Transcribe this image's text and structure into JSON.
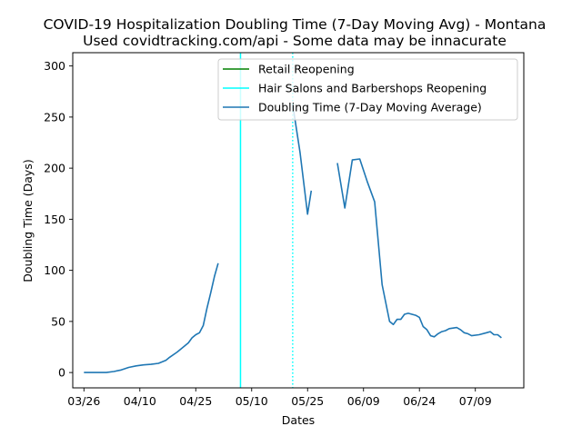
{
  "chart_data": {
    "type": "line",
    "title": "COVID-19 Hospitalization Doubling Time (7-Day Moving Avg) - Montana",
    "subtitle": "Used covidtracking.com/api - Some data may be innacurate",
    "xlabel": "Dates",
    "ylabel": "Doubling Time (Days)",
    "x_axis": {
      "type": "date",
      "range": [
        "2020-03-23",
        "2020-07-22"
      ],
      "ticks": [
        {
          "date": "2020-03-26",
          "label": "03/26"
        },
        {
          "date": "2020-04-10",
          "label": "04/10"
        },
        {
          "date": "2020-04-25",
          "label": "04/25"
        },
        {
          "date": "2020-05-10",
          "label": "05/10"
        },
        {
          "date": "2020-05-25",
          "label": "05/25"
        },
        {
          "date": "2020-06-09",
          "label": "06/09"
        },
        {
          "date": "2020-06-24",
          "label": "06/24"
        },
        {
          "date": "2020-07-09",
          "label": "07/09"
        }
      ]
    },
    "y_axis": {
      "range": [
        -15,
        313
      ],
      "ticks": [
        0,
        50,
        100,
        150,
        200,
        250,
        300
      ]
    },
    "grid": false,
    "legend": {
      "placement": "top-right",
      "entries": [
        {
          "label": "Retail Reopening",
          "color": "#008000",
          "style": "solid"
        },
        {
          "label": "Hair Salons and Barbershops Reopening",
          "color": "#00ffff",
          "style": "solid"
        },
        {
          "label": "Doubling Time (7-Day Moving Average)",
          "color": "#1f77b4",
          "style": "solid"
        }
      ]
    },
    "vlines": [
      {
        "date": "2020-05-07",
        "color": "#00ffff",
        "style": "solid"
      },
      {
        "date": "2020-05-21",
        "color": "#00ffff",
        "style": "dotted"
      }
    ],
    "series": [
      {
        "name": "Doubling Time (7-Day Moving Average)",
        "color": "#1f77b4",
        "segments": [
          [
            [
              "2020-03-26",
              0
            ],
            [
              "2020-03-28",
              0
            ],
            [
              "2020-03-30",
              0
            ],
            [
              "2020-04-01",
              0
            ],
            [
              "2020-04-03",
              1
            ],
            [
              "2020-04-05",
              2.5
            ],
            [
              "2020-04-07",
              5
            ],
            [
              "2020-04-09",
              6.5
            ],
            [
              "2020-04-11",
              7.5
            ],
            [
              "2020-04-13",
              8
            ],
            [
              "2020-04-15",
              9
            ],
            [
              "2020-04-17",
              12
            ],
            [
              "2020-04-18",
              15
            ],
            [
              "2020-04-20",
              20
            ],
            [
              "2020-04-22",
              26
            ],
            [
              "2020-04-23",
              29
            ],
            [
              "2020-04-24",
              34
            ],
            [
              "2020-04-25",
              37
            ],
            [
              "2020-04-26",
              39
            ],
            [
              "2020-04-27",
              46
            ],
            [
              "2020-04-28",
              63
            ],
            [
              "2020-04-29",
              78
            ],
            [
              "2020-04-30",
              94
            ],
            [
              "2020-05-01",
              107
            ]
          ],
          [
            [
              "2020-05-21",
              262
            ],
            [
              "2020-05-23",
              215
            ],
            [
              "2020-05-24",
              185
            ],
            [
              "2020-05-25",
              155
            ],
            [
              "2020-05-26",
              178
            ]
          ],
          [
            [
              "2020-06-02",
              205
            ],
            [
              "2020-06-04",
              161
            ],
            [
              "2020-06-06",
              208
            ],
            [
              "2020-06-08",
              209
            ],
            [
              "2020-06-10",
              187
            ],
            [
              "2020-06-12",
              167
            ],
            [
              "2020-06-14",
              86
            ],
            [
              "2020-06-16",
              50
            ],
            [
              "2020-06-17",
              47
            ],
            [
              "2020-06-18",
              52
            ],
            [
              "2020-06-19",
              52
            ],
            [
              "2020-06-20",
              57
            ],
            [
              "2020-06-21",
              58
            ],
            [
              "2020-06-22",
              57
            ],
            [
              "2020-06-23",
              56
            ],
            [
              "2020-06-24",
              54
            ],
            [
              "2020-06-25",
              45
            ],
            [
              "2020-06-26",
              42
            ],
            [
              "2020-06-27",
              36
            ],
            [
              "2020-06-28",
              35
            ],
            [
              "2020-06-29",
              38
            ],
            [
              "2020-06-30",
              40
            ],
            [
              "2020-07-01",
              41
            ],
            [
              "2020-07-02",
              43
            ],
            [
              "2020-07-04",
              44
            ],
            [
              "2020-07-05",
              42
            ],
            [
              "2020-07-06",
              39
            ],
            [
              "2020-07-07",
              38
            ],
            [
              "2020-07-08",
              36
            ],
            [
              "2020-07-10",
              37
            ],
            [
              "2020-07-12",
              39
            ],
            [
              "2020-07-13",
              40
            ],
            [
              "2020-07-14",
              37
            ],
            [
              "2020-07-15",
              37
            ],
            [
              "2020-07-16",
              34
            ]
          ]
        ]
      }
    ]
  }
}
